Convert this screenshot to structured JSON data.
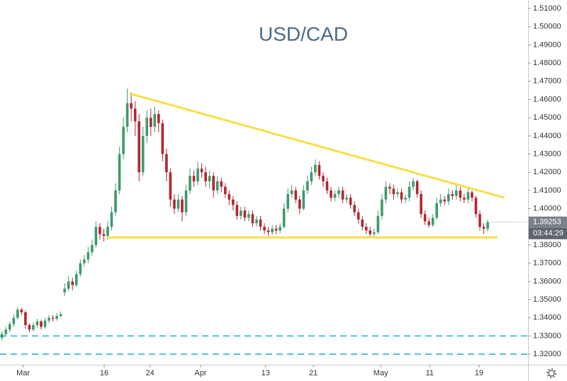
{
  "chart_data": {
    "type": "candlestick",
    "title": "USD/CAD",
    "up_color": "#3d9a6c",
    "down_color": "#b3262f",
    "open": [
      1.329,
      1.331,
      1.3335,
      1.3365,
      1.34,
      1.3445,
      1.343,
      1.336,
      1.3335,
      1.336,
      1.338,
      1.335,
      1.3385,
      1.34,
      1.3395,
      1.341,
      1.354,
      1.356,
      1.36,
      1.358,
      1.364,
      1.37,
      1.372,
      1.376,
      1.38,
      1.39,
      1.386,
      1.385,
      1.39,
      1.398,
      1.41,
      1.43,
      1.445,
      1.458,
      1.455,
      1.448,
      1.42,
      1.44,
      1.45,
      1.445,
      1.452,
      1.447,
      1.43,
      1.42,
      1.405,
      1.4,
      1.405,
      1.398,
      1.41,
      1.418,
      1.415,
      1.422,
      1.42,
      1.415,
      1.418,
      1.41,
      1.415,
      1.412,
      1.408,
      1.405,
      1.402,
      1.396,
      1.399,
      1.395,
      1.397,
      1.392,
      1.394,
      1.39,
      1.388,
      1.387,
      1.389,
      1.388,
      1.39,
      1.4,
      1.408,
      1.41,
      1.405,
      1.4,
      1.41,
      1.415,
      1.42,
      1.424,
      1.418,
      1.415,
      1.41,
      1.406,
      1.408,
      1.41,
      1.405,
      1.406,
      1.402,
      1.398,
      1.394,
      1.39,
      1.388,
      1.386,
      1.387,
      1.396,
      1.405,
      1.412,
      1.411,
      1.408,
      1.409,
      1.405,
      1.406,
      1.412,
      1.415,
      1.408,
      1.397,
      1.393,
      1.391,
      1.395,
      1.403,
      1.405,
      1.404,
      1.408,
      1.407,
      1.41,
      1.406,
      1.405,
      1.409,
      1.406,
      1.397,
      1.39,
      1.389
    ],
    "high": [
      1.3325,
      1.335,
      1.338,
      1.342,
      1.346,
      1.3455,
      1.344,
      1.337,
      1.3375,
      1.3395,
      1.339,
      1.34,
      1.3415,
      1.3415,
      1.3425,
      1.3435,
      1.359,
      1.363,
      1.362,
      1.366,
      1.372,
      1.3745,
      1.379,
      1.383,
      1.393,
      1.392,
      1.389,
      1.393,
      1.401,
      1.414,
      1.434,
      1.45,
      1.466,
      1.464,
      1.459,
      1.452,
      1.445,
      1.454,
      1.455,
      1.456,
      1.454,
      1.449,
      1.433,
      1.422,
      1.408,
      1.408,
      1.407,
      1.413,
      1.422,
      1.421,
      1.426,
      1.425,
      1.423,
      1.421,
      1.42,
      1.418,
      1.417,
      1.414,
      1.41,
      1.407,
      1.404,
      1.401,
      1.401,
      1.399,
      1.399,
      1.396,
      1.396,
      1.392,
      1.39,
      1.391,
      1.391,
      1.392,
      1.403,
      1.411,
      1.413,
      1.412,
      1.407,
      1.413,
      1.418,
      1.423,
      1.427,
      1.426,
      1.42,
      1.417,
      1.412,
      1.41,
      1.412,
      1.412,
      1.408,
      1.408,
      1.404,
      1.4,
      1.396,
      1.392,
      1.39,
      1.389,
      1.399,
      1.408,
      1.415,
      1.414,
      1.413,
      1.411,
      1.411,
      1.408,
      1.415,
      1.417,
      1.416,
      1.41,
      1.399,
      1.395,
      1.397,
      1.406,
      1.408,
      1.407,
      1.411,
      1.41,
      1.413,
      1.412,
      1.408,
      1.411,
      1.41,
      1.407,
      1.399,
      1.392,
      1.394
    ],
    "low": [
      1.3275,
      1.33,
      1.332,
      1.335,
      1.339,
      1.3415,
      1.334,
      1.332,
      1.3325,
      1.3345,
      1.3335,
      1.334,
      1.337,
      1.338,
      1.3385,
      1.34,
      1.352,
      1.3545,
      1.355,
      1.357,
      1.3625,
      1.368,
      1.37,
      1.374,
      1.3785,
      1.383,
      1.382,
      1.383,
      1.388,
      1.396,
      1.408,
      1.427,
      1.442,
      1.448,
      1.44,
      1.415,
      1.418,
      1.436,
      1.44,
      1.442,
      1.442,
      1.426,
      1.415,
      1.401,
      1.397,
      1.398,
      1.393,
      1.396,
      1.408,
      1.412,
      1.413,
      1.417,
      1.412,
      1.411,
      1.406,
      1.408,
      1.409,
      1.406,
      1.402,
      1.399,
      1.394,
      1.394,
      1.393,
      1.393,
      1.39,
      1.39,
      1.388,
      1.386,
      1.385,
      1.3855,
      1.386,
      1.3865,
      1.389,
      1.398,
      1.406,
      1.403,
      1.397,
      1.399,
      1.408,
      1.413,
      1.418,
      1.416,
      1.412,
      1.408,
      1.404,
      1.404,
      1.406,
      1.403,
      1.403,
      1.4,
      1.396,
      1.392,
      1.388,
      1.386,
      1.3845,
      1.3845,
      1.386,
      1.394,
      1.403,
      1.408,
      1.405,
      1.406,
      1.403,
      1.403,
      1.404,
      1.41,
      1.406,
      1.395,
      1.391,
      1.3895,
      1.39,
      1.394,
      1.401,
      1.402,
      1.402,
      1.405,
      1.405,
      1.404,
      1.403,
      1.403,
      1.404,
      1.395,
      1.388,
      1.386,
      1.3875
    ],
    "close": [
      1.331,
      1.3335,
      1.3365,
      1.34,
      1.3445,
      1.343,
      1.336,
      1.3335,
      1.336,
      1.338,
      1.335,
      1.3385,
      1.34,
      1.3395,
      1.341,
      1.342,
      1.356,
      1.36,
      1.358,
      1.364,
      1.37,
      1.372,
      1.376,
      1.38,
      1.39,
      1.386,
      1.385,
      1.39,
      1.398,
      1.41,
      1.43,
      1.445,
      1.458,
      1.455,
      1.448,
      1.42,
      1.44,
      1.45,
      1.445,
      1.452,
      1.447,
      1.43,
      1.42,
      1.405,
      1.4,
      1.405,
      1.398,
      1.41,
      1.418,
      1.415,
      1.422,
      1.42,
      1.415,
      1.418,
      1.41,
      1.415,
      1.412,
      1.408,
      1.405,
      1.402,
      1.396,
      1.399,
      1.395,
      1.397,
      1.392,
      1.394,
      1.39,
      1.388,
      1.387,
      1.389,
      1.388,
      1.39,
      1.4,
      1.408,
      1.41,
      1.405,
      1.4,
      1.41,
      1.415,
      1.42,
      1.424,
      1.418,
      1.415,
      1.41,
      1.406,
      1.408,
      1.41,
      1.405,
      1.406,
      1.402,
      1.398,
      1.394,
      1.39,
      1.388,
      1.386,
      1.387,
      1.396,
      1.405,
      1.412,
      1.411,
      1.408,
      1.409,
      1.405,
      1.406,
      1.412,
      1.415,
      1.408,
      1.397,
      1.393,
      1.391,
      1.395,
      1.403,
      1.405,
      1.404,
      1.408,
      1.407,
      1.41,
      1.406,
      1.405,
      1.409,
      1.406,
      1.397,
      1.39,
      1.389,
      1.39253
    ],
    "xlim": [
      -0.5,
      134.3
    ],
    "xticks": [
      {
        "value": 5.4,
        "label": "Mar"
      },
      {
        "value": 26.1,
        "label": "16"
      },
      {
        "value": 37.8,
        "label": "24"
      },
      {
        "value": 50.7,
        "label": "Apr"
      },
      {
        "value": 67.3,
        "label": "13"
      },
      {
        "value": 79.5,
        "label": "21"
      },
      {
        "value": 96.7,
        "label": "May"
      },
      {
        "value": 109.2,
        "label": "11"
      },
      {
        "value": 121.8,
        "label": "19"
      }
    ],
    "ylim": [
      1.3142,
      1.5147
    ],
    "yticks": [
      {
        "value": 1.32,
        "label": "1.32000"
      },
      {
        "value": 1.33,
        "label": "1.33000"
      },
      {
        "value": 1.34,
        "label": "1.34000"
      },
      {
        "value": 1.35,
        "label": "1.35000"
      },
      {
        "value": 1.36,
        "label": "1.36000"
      },
      {
        "value": 1.37,
        "label": "1.37000"
      },
      {
        "value": 1.38,
        "label": "1.38000"
      },
      {
        "value": 1.39,
        "label": "1.39000"
      },
      {
        "value": 1.4,
        "label": "1.40000"
      },
      {
        "value": 1.41,
        "label": "1.41000"
      },
      {
        "value": 1.42,
        "label": "1.42000"
      },
      {
        "value": 1.43,
        "label": "1.43000"
      },
      {
        "value": 1.44,
        "label": "1.44000"
      },
      {
        "value": 1.45,
        "label": "1.45000"
      },
      {
        "value": 1.46,
        "label": "1.46000"
      },
      {
        "value": 1.47,
        "label": "1.47000"
      },
      {
        "value": 1.48,
        "label": "1.48000"
      },
      {
        "value": 1.49,
        "label": "1.49000"
      },
      {
        "value": 1.5,
        "label": "1.50000"
      },
      {
        "value": 1.51,
        "label": "1.51000"
      }
    ],
    "grid": false,
    "trend_lines": [
      {
        "x": [
          32.6,
          128.3
        ],
        "y": [
          1.4633,
          1.406
        ],
        "color": "#f7df4a"
      },
      {
        "x": [
          26.6,
          126.5
        ],
        "y": [
          1.3842,
          1.3842
        ],
        "color": "#f7df4a"
      }
    ],
    "hlines": [
      {
        "value": 1.33,
        "color": "#4fbfd6"
      },
      {
        "value": 1.32,
        "color": "#4fbfd6"
      }
    ],
    "countdown": "03:44:29",
    "price_box_color": "#7b8189"
  }
}
